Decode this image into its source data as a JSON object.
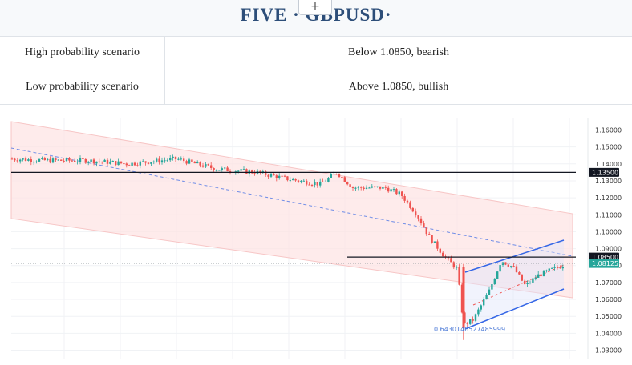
{
  "header": {
    "title": "FIVE · GBPUSD·",
    "expand_label": "+"
  },
  "scenarios": [
    {
      "label": "High  probability  scenario",
      "value": "Below  1.0850,  bearish"
    },
    {
      "label": "Low  probability  scenario",
      "value": "Above  1.0850,  bullish"
    }
  ],
  "chart_data": {
    "type": "candlestick",
    "symbol": "GBPUSD",
    "y_ticks": [
      "1.16000",
      "1.15000",
      "1.14000",
      "1.13000",
      "1.12000",
      "1.11000",
      "1.10000",
      "1.09000",
      "1.08000",
      "1.07000",
      "1.06000",
      "1.05000",
      "1.04000",
      "1.03000"
    ],
    "ylim": [
      1.027,
      1.163
    ],
    "price_lines": [
      {
        "value": 1.135,
        "label": "1.13500",
        "color": "#131722"
      },
      {
        "value": 1.085,
        "label": "1.08500",
        "color": "#131722"
      }
    ],
    "current_price": {
      "value": 1.08125,
      "label": "1.08125",
      "color": "#26a69a"
    },
    "fib_label": "0.6430146527485999",
    "colors": {
      "up": "#26a69a",
      "down": "#ef5350",
      "channel_fill": "#fde2e2",
      "upper_channel": "#3466e6",
      "trend_dash": "#3466e6"
    },
    "grid": true,
    "candles": []
  }
}
